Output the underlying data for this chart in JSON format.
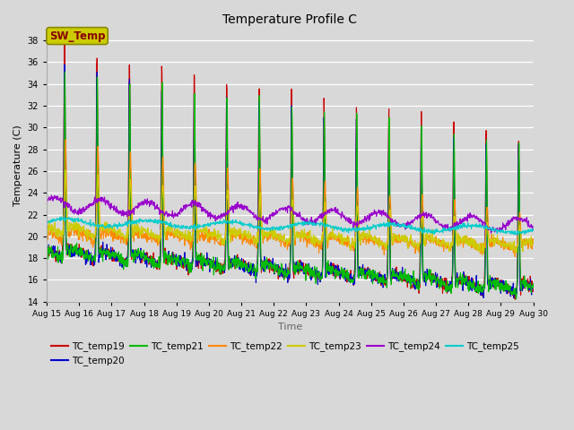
{
  "title": "Temperature Profile C",
  "xlabel": "Time",
  "ylabel": "Temperature (C)",
  "ylim": [
    14,
    39
  ],
  "yticks": [
    14,
    16,
    18,
    20,
    22,
    24,
    26,
    28,
    30,
    32,
    34,
    36,
    38
  ],
  "x_labels": [
    "Aug 15",
    "Aug 16",
    "Aug 17",
    "Aug 18",
    "Aug 19",
    "Aug 20",
    "Aug 21",
    "Aug 22",
    "Aug 23",
    "Aug 24",
    "Aug 25",
    "Aug 26",
    "Aug 27",
    "Aug 28",
    "Aug 29",
    "Aug 30"
  ],
  "legend_entries": [
    "TC_temp19",
    "TC_temp20",
    "TC_temp21",
    "TC_temp22",
    "TC_temp23",
    "TC_temp24",
    "TC_temp25"
  ],
  "line_colors": [
    "#cc0000",
    "#0000cc",
    "#00bb00",
    "#ff8800",
    "#cccc00",
    "#9900cc",
    "#00cccc"
  ],
  "sw_temp_label": "SW_Temp",
  "sw_temp_box_facecolor": "#cccc00",
  "sw_temp_text_color": "#880000",
  "sw_temp_edge_color": "#888800",
  "background_color": "#d8d8d8",
  "plot_bg_color": "#d8d8d8",
  "grid_color": "#ffffff",
  "n_points": 1440
}
